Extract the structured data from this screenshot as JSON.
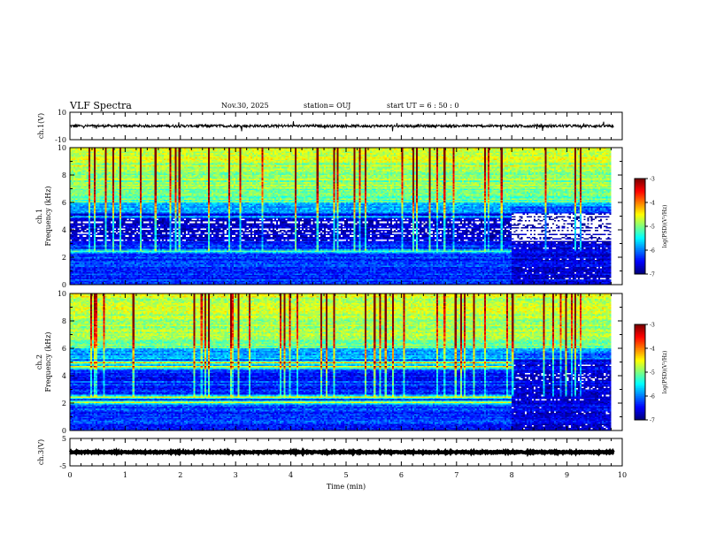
{
  "header": {
    "title": "VLF Spectra",
    "date": "Nov.30, 2025",
    "station": "station= OUJ",
    "start_ut": "start UT =  6 : 50 : 0"
  },
  "chart_data": [
    {
      "type": "line",
      "id": "ch1-waveform",
      "ylabel": "ch.1(V)",
      "ylim": [
        -10,
        10
      ],
      "yticks": [
        "10",
        "-10"
      ],
      "xlim": [
        0,
        10
      ],
      "series": [
        {
          "name": "ch.1 waveform",
          "baseline": 0,
          "typical_amplitude": 1,
          "color": "#000000"
        }
      ]
    },
    {
      "type": "heatmap",
      "id": "ch1-spectrogram",
      "ylabel": "ch.1\nFrequency (kHz)",
      "ylim": [
        0,
        10
      ],
      "yticks": [
        "0",
        "2",
        "4",
        "6",
        "8",
        "10"
      ],
      "xlim": [
        0,
        10
      ],
      "data_end_min": 9.8,
      "narrowband_lines_khz": [
        5.0,
        2.5
      ],
      "narrowband_end_min": 8.0,
      "colorbar": {
        "label": "log(PSD)(V²/Hz)",
        "range": [
          -7,
          -3
        ],
        "ticks": [
          "-3",
          "-4",
          "-5",
          "-6",
          "-7"
        ],
        "colors": [
          "#00007f",
          "#0000ff",
          "#007fff",
          "#00ffff",
          "#7fff7f",
          "#ffff00",
          "#ff7f00",
          "#ff0000",
          "#7f0000"
        ]
      }
    },
    {
      "type": "heatmap",
      "id": "ch2-spectrogram",
      "ylabel": "ch.2\nFrequency (kHz)",
      "ylim": [
        0,
        10
      ],
      "yticks": [
        "0",
        "2",
        "4",
        "6",
        "8",
        "10"
      ],
      "xlim": [
        0,
        10
      ],
      "data_end_min": 9.8,
      "narrowband_lines_khz": [
        5.0,
        4.7,
        2.5,
        2.1
      ],
      "narrowband_end_min": 8.0,
      "colorbar": {
        "label": "log(PSD)(V²/Hz)",
        "range": [
          -7,
          -3
        ],
        "ticks": [
          "-3",
          "-4",
          "-5",
          "-6",
          "-7"
        ],
        "colors": [
          "#00007f",
          "#0000ff",
          "#007fff",
          "#00ffff",
          "#7fff7f",
          "#ffff00",
          "#ff7f00",
          "#ff0000",
          "#7f0000"
        ]
      }
    },
    {
      "type": "line",
      "id": "ch3-waveform",
      "ylabel": "ch.3(V)",
      "ylim": [
        -5,
        5
      ],
      "yticks": [
        "5",
        "-5"
      ],
      "xlim": [
        0,
        10
      ],
      "series": [
        {
          "name": "ch.3 waveform",
          "baseline": 0,
          "typical_amplitude": 0.2,
          "color": "#000000"
        }
      ]
    }
  ],
  "x_axis": {
    "xlabel": "Time  (min)",
    "xlim": [
      0,
      10
    ],
    "ticks": [
      "0",
      "1",
      "2",
      "3",
      "4",
      "5",
      "6",
      "7",
      "8",
      "9",
      "10"
    ]
  }
}
